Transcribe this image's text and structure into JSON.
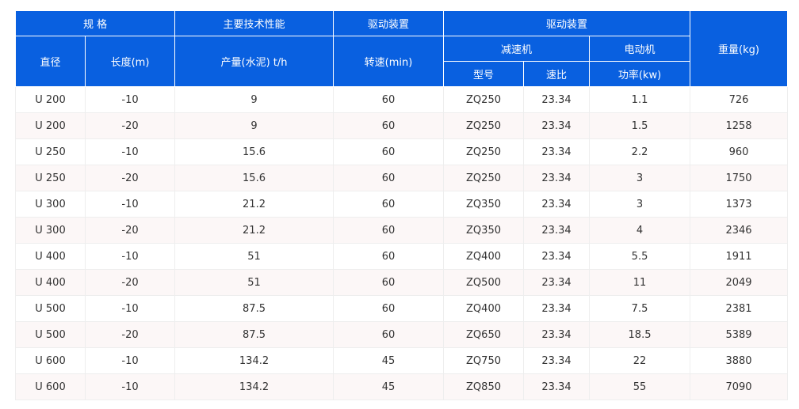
{
  "header": {
    "spec": "规 格",
    "performance": "主要技术性能",
    "drive1": "驱动装置",
    "drive2": "驱动装置",
    "weight": "重量(kg)",
    "diameter": "直径",
    "length": "长度(m)",
    "output": "产量(水泥) t/h",
    "speed": "转速(min)",
    "reducer": "减速机",
    "motor": "电动机",
    "model": "型号",
    "ratio": "速比",
    "power": "功率(kw)"
  },
  "colors": {
    "header_bg": "#0960e0",
    "alt_row_bg": "#fcf7f7"
  },
  "rows": [
    [
      "U 200",
      "-10",
      "9",
      "60",
      "ZQ250",
      "23.34",
      "1.1",
      "726"
    ],
    [
      "U 200",
      "-20",
      "9",
      "60",
      "ZQ250",
      "23.34",
      "1.5",
      "1258"
    ],
    [
      "U 250",
      "-10",
      "15.6",
      "60",
      "ZQ250",
      "23.34",
      "2.2",
      "960"
    ],
    [
      "U 250",
      "-20",
      "15.6",
      "60",
      "ZQ250",
      "23.34",
      "3",
      "1750"
    ],
    [
      "U 300",
      "-10",
      "21.2",
      "60",
      "ZQ350",
      "23.34",
      "3",
      "1373"
    ],
    [
      "U 300",
      "-20",
      "21.2",
      "60",
      "ZQ350",
      "23.34",
      "4",
      "2346"
    ],
    [
      "U 400",
      "-10",
      "51",
      "60",
      "ZQ400",
      "23.34",
      "5.5",
      "1911"
    ],
    [
      "U 400",
      "-20",
      "51",
      "60",
      "ZQ500",
      "23.34",
      "11",
      "2049"
    ],
    [
      "U 500",
      "-10",
      "87.5",
      "60",
      "ZQ400",
      "23.34",
      "7.5",
      "2381"
    ],
    [
      "U 500",
      "-20",
      "87.5",
      "60",
      "ZQ650",
      "23.34",
      "18.5",
      "5389"
    ],
    [
      "U 600",
      "-10",
      "134.2",
      "45",
      "ZQ750",
      "23.34",
      "22",
      "3880"
    ],
    [
      "U 600",
      "-10",
      "134.2",
      "45",
      "ZQ850",
      "23.34",
      "55",
      "7090"
    ]
  ]
}
